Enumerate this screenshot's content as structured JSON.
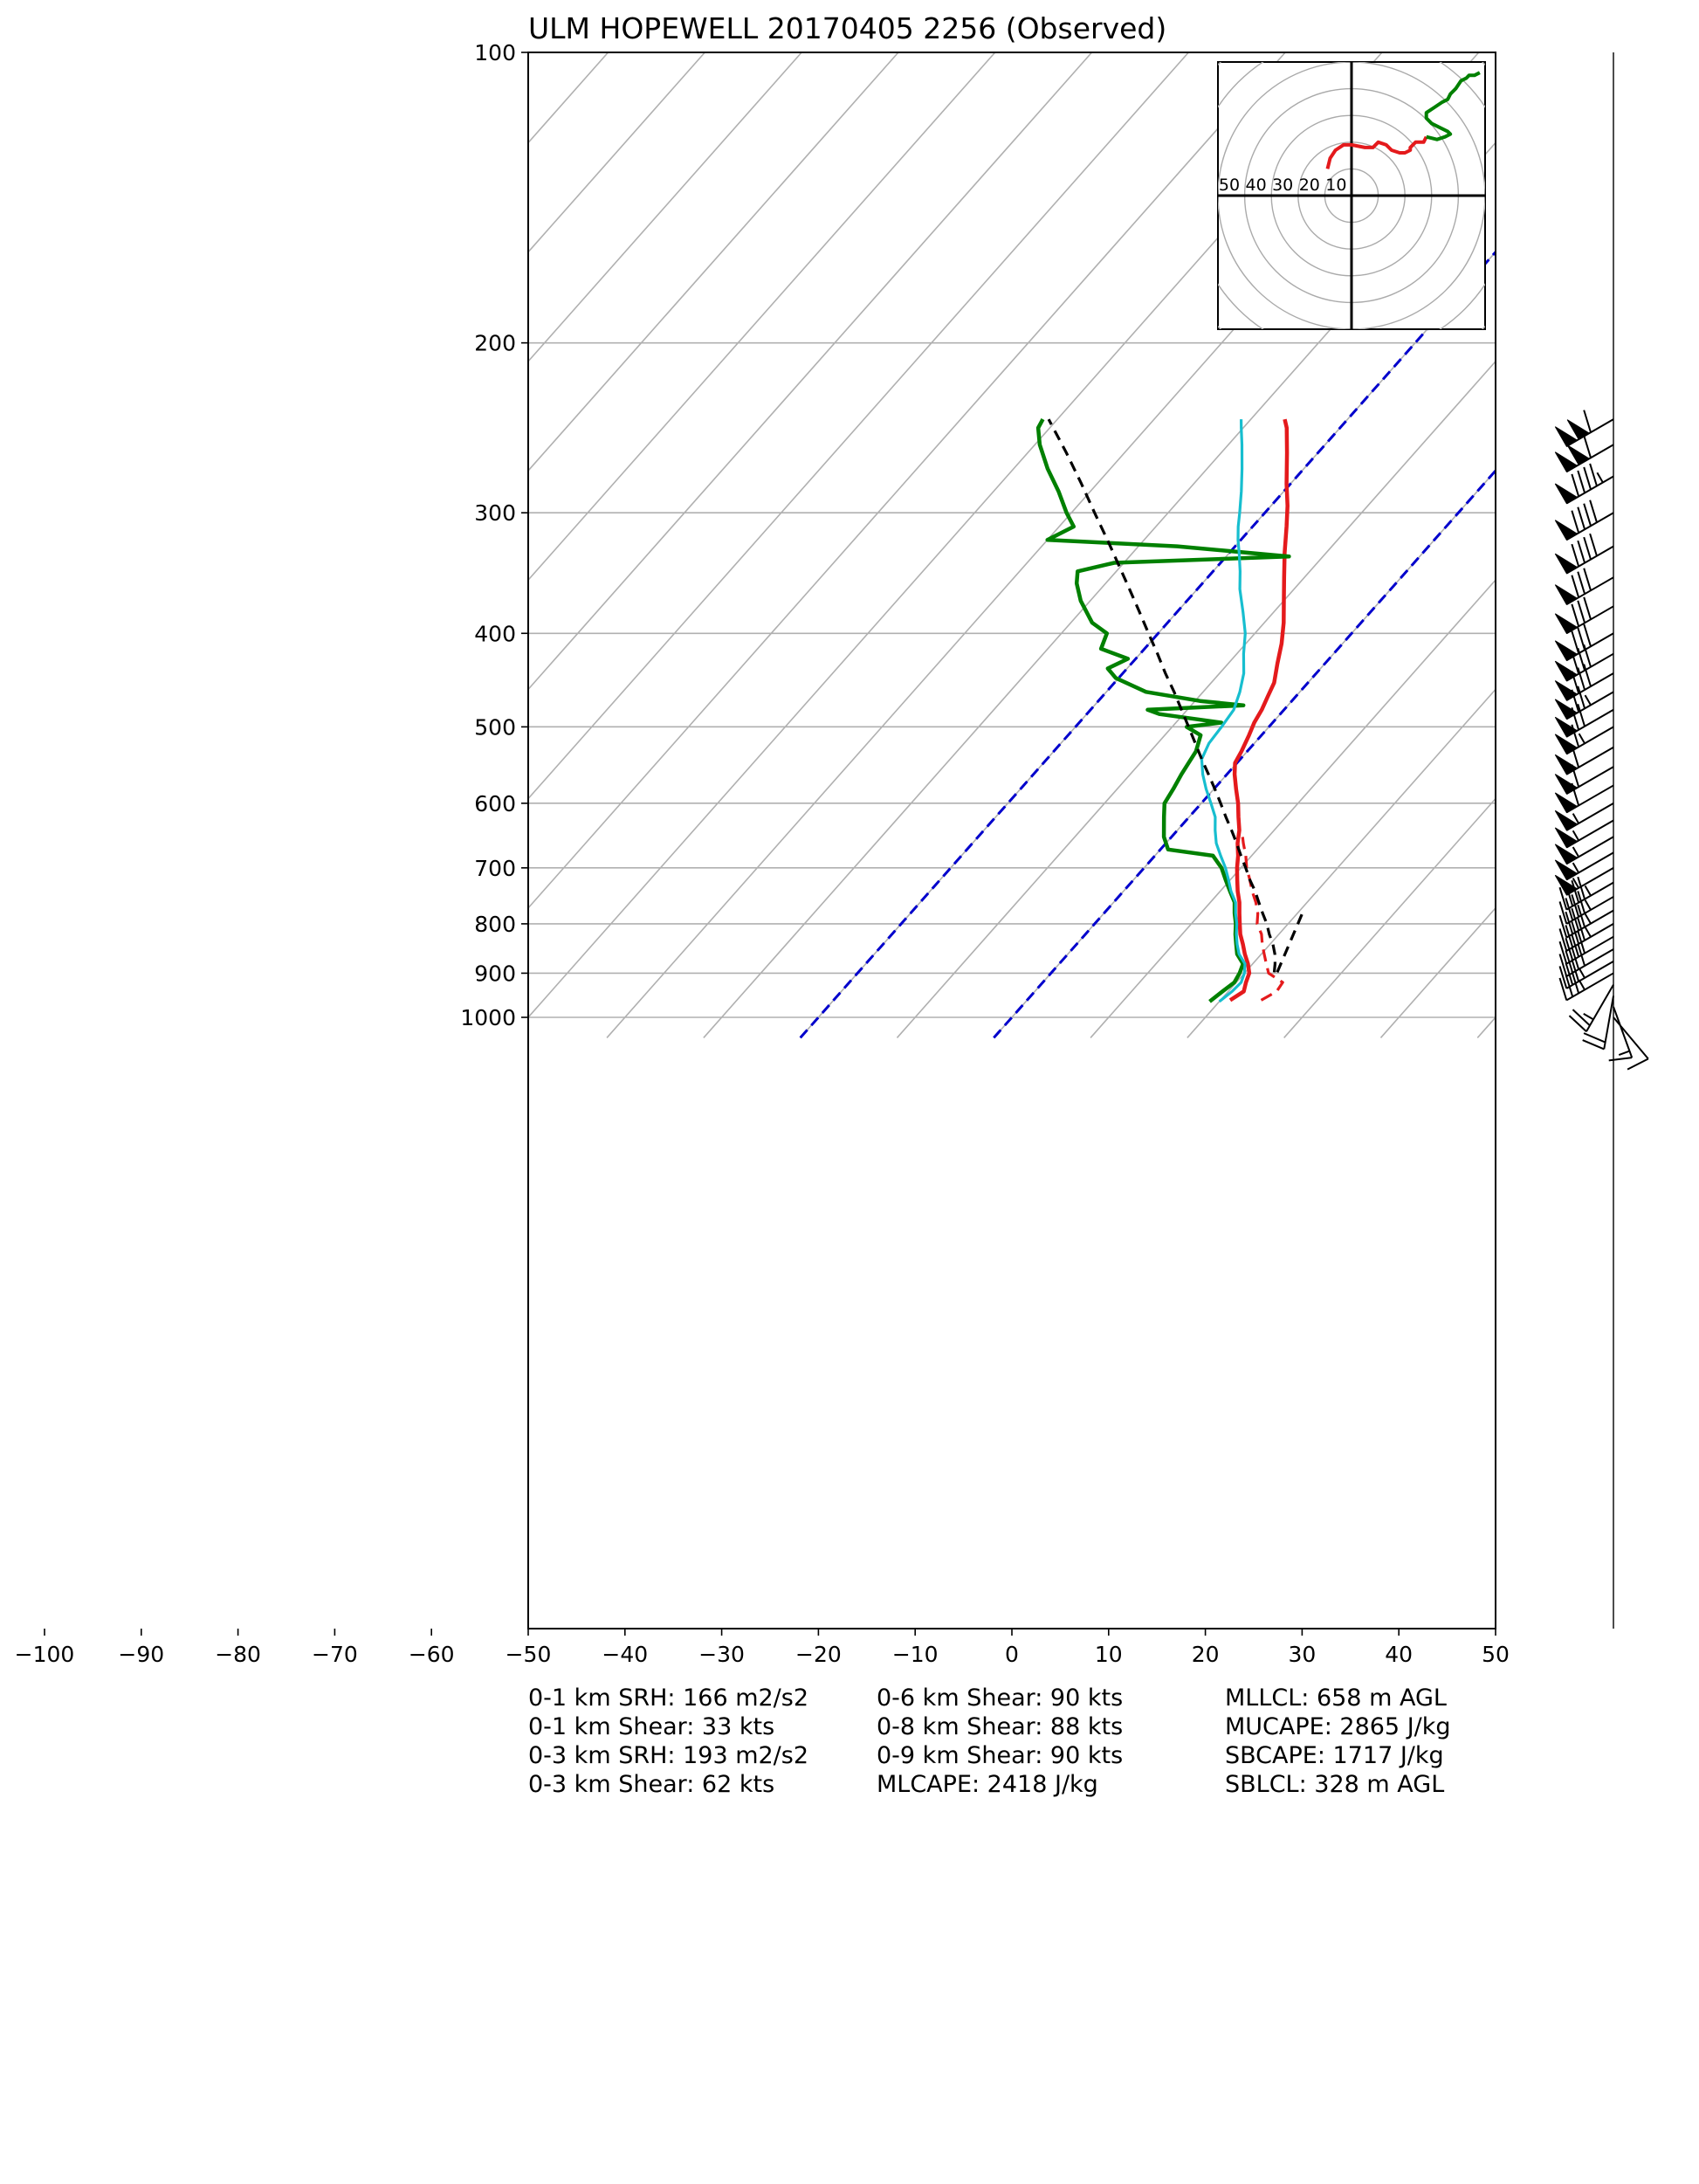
{
  "chart_data": {
    "type": "skew-t",
    "title": "ULM HOPEWELL 20170405 2256   (Observed)",
    "pressure_ticks": [
      100,
      200,
      300,
      400,
      500,
      600,
      700,
      800,
      900,
      1000
    ],
    "temperature_ticks": [
      -100,
      -90,
      -80,
      -70,
      -60,
      -50,
      -40,
      -30,
      -20,
      -10,
      0,
      10,
      20,
      30,
      40,
      50
    ],
    "xlim": [
      -50,
      50
    ],
    "ylim": [
      1050,
      100
    ],
    "series": [
      {
        "role": "temperature",
        "color": "#e41a1c",
        "points": [
          [
            960,
            21.0
          ],
          [
            940,
            21.6
          ],
          [
            920,
            21.0
          ],
          [
            900,
            20.5
          ],
          [
            880,
            19.5
          ],
          [
            860,
            18.3
          ],
          [
            840,
            17.2
          ],
          [
            820,
            16.0
          ],
          [
            800,
            15.0
          ],
          [
            780,
            14.0
          ],
          [
            760,
            13.0
          ],
          [
            740,
            11.8
          ],
          [
            720,
            10.7
          ],
          [
            700,
            9.6
          ],
          [
            680,
            8.6
          ],
          [
            660,
            7.4
          ],
          [
            640,
            6.4
          ],
          [
            620,
            5.1
          ],
          [
            600,
            3.8
          ],
          [
            580,
            2.3
          ],
          [
            560,
            0.8
          ],
          [
            545,
            -0.2
          ],
          [
            530,
            -0.6
          ],
          [
            510,
            -1.3
          ],
          [
            495,
            -1.9
          ],
          [
            480,
            -2.3
          ],
          [
            465,
            -2.9
          ],
          [
            450,
            -3.5
          ],
          [
            430,
            -4.9
          ],
          [
            410,
            -6.3
          ],
          [
            390,
            -8.0
          ],
          [
            370,
            -10.0
          ],
          [
            350,
            -12.1
          ],
          [
            330,
            -14.3
          ],
          [
            310,
            -16.5
          ],
          [
            295,
            -18.3
          ],
          [
            280,
            -20.4
          ],
          [
            260,
            -23.2
          ],
          [
            245,
            -25.5
          ],
          [
            240,
            -26.5
          ]
        ]
      },
      {
        "role": "dewpoint",
        "color": "#008000",
        "points": [
          [
            963,
            19.0
          ],
          [
            940,
            19.4
          ],
          [
            920,
            19.8
          ],
          [
            900,
            19.5
          ],
          [
            880,
            19.0
          ],
          [
            860,
            17.5
          ],
          [
            840,
            16.5
          ],
          [
            820,
            15.5
          ],
          [
            800,
            14.6
          ],
          [
            780,
            13.5
          ],
          [
            760,
            12.5
          ],
          [
            740,
            11.0
          ],
          [
            720,
            9.5
          ],
          [
            700,
            8.0
          ],
          [
            680,
            6.0
          ],
          [
            670,
            0.8
          ],
          [
            650,
            -0.8
          ],
          [
            620,
            -2.6
          ],
          [
            600,
            -3.8
          ],
          [
            580,
            -4.2
          ],
          [
            560,
            -4.7
          ],
          [
            545,
            -5.0
          ],
          [
            530,
            -5.3
          ],
          [
            510,
            -6.3
          ],
          [
            500,
            -8.5
          ],
          [
            495,
            -5.3
          ],
          [
            485,
            -12.5
          ],
          [
            480,
            -14.1
          ],
          [
            475,
            -4.6
          ],
          [
            470,
            -9.5
          ],
          [
            460,
            -15.9
          ],
          [
            445,
            -20.3
          ],
          [
            435,
            -22.0
          ],
          [
            425,
            -20.8
          ],
          [
            415,
            -24.5
          ],
          [
            400,
            -25.3
          ],
          [
            390,
            -27.8
          ],
          [
            370,
            -31.0
          ],
          [
            355,
            -33.0
          ],
          [
            345,
            -34.0
          ],
          [
            338,
            -31.0
          ],
          [
            333,
            -13.5
          ],
          [
            325,
            -26.0
          ],
          [
            320,
            -40.0
          ],
          [
            310,
            -38.5
          ],
          [
            300,
            -40.5
          ],
          [
            285,
            -43.3
          ],
          [
            270,
            -46.5
          ],
          [
            255,
            -49.5
          ],
          [
            245,
            -51.2
          ],
          [
            240,
            -51.5
          ]
        ]
      },
      {
        "role": "virtual-temperature-dashed",
        "color": "#e41a1c",
        "points": [
          [
            960,
            24.2
          ],
          [
            940,
            25.0
          ],
          [
            920,
            24.8
          ],
          [
            900,
            22.5
          ],
          [
            880,
            21.4
          ],
          [
            860,
            20.3
          ],
          [
            840,
            19.2
          ],
          [
            820,
            18.2
          ],
          [
            800,
            16.8
          ],
          [
            780,
            15.9
          ],
          [
            760,
            14.7
          ],
          [
            740,
            13.3
          ],
          [
            720,
            12.0
          ],
          [
            700,
            10.6
          ],
          [
            680,
            9.4
          ],
          [
            660,
            8.0
          ],
          [
            645,
            7.0
          ]
        ]
      },
      {
        "role": "wet-bulb",
        "color": "#17becf",
        "points": [
          [
            963,
            20.0
          ],
          [
            940,
            20.4
          ],
          [
            920,
            20.5
          ],
          [
            900,
            20.0
          ],
          [
            880,
            19.2
          ],
          [
            860,
            17.7
          ],
          [
            840,
            16.6
          ],
          [
            820,
            15.6
          ],
          [
            800,
            14.7
          ],
          [
            780,
            13.6
          ],
          [
            760,
            12.6
          ],
          [
            740,
            11.1
          ],
          [
            720,
            9.8
          ],
          [
            700,
            8.4
          ],
          [
            680,
            6.8
          ],
          [
            660,
            5.2
          ],
          [
            640,
            3.9
          ],
          [
            620,
            2.7
          ],
          [
            600,
            1.0
          ],
          [
            580,
            -0.8
          ],
          [
            560,
            -2.5
          ],
          [
            540,
            -4.0
          ],
          [
            520,
            -4.7
          ],
          [
            500,
            -4.9
          ],
          [
            480,
            -5.2
          ],
          [
            460,
            -6.2
          ],
          [
            440,
            -7.5
          ],
          [
            420,
            -9.3
          ],
          [
            400,
            -11.0
          ],
          [
            380,
            -13.2
          ],
          [
            360,
            -15.6
          ],
          [
            345,
            -17.2
          ],
          [
            330,
            -19.0
          ],
          [
            320,
            -20.3
          ],
          [
            310,
            -21.5
          ],
          [
            300,
            -22.6
          ],
          [
            285,
            -24.4
          ],
          [
            270,
            -26.4
          ],
          [
            255,
            -28.6
          ],
          [
            245,
            -30.2
          ],
          [
            240,
            -31.0
          ]
        ]
      },
      {
        "role": "parcel-dashed",
        "color": "#000000",
        "points": [
          [
            898,
            23.0
          ],
          [
            880,
            22.3
          ],
          [
            860,
            21.4
          ],
          [
            840,
            20.3
          ],
          [
            820,
            19.0
          ],
          [
            800,
            17.8
          ],
          [
            780,
            16.4
          ],
          [
            760,
            15.0
          ],
          [
            740,
            13.6
          ],
          [
            720,
            12.0
          ],
          [
            700,
            10.5
          ],
          [
            680,
            8.9
          ],
          [
            660,
            7.3
          ],
          [
            640,
            5.6
          ],
          [
            620,
            3.8
          ],
          [
            600,
            2.0
          ],
          [
            580,
            0.1
          ],
          [
            560,
            -1.9
          ],
          [
            540,
            -4.0
          ],
          [
            520,
            -6.1
          ],
          [
            500,
            -8.3
          ],
          [
            480,
            -10.6
          ],
          [
            460,
            -13.0
          ],
          [
            440,
            -15.6
          ],
          [
            420,
            -18.2
          ],
          [
            400,
            -21.0
          ],
          [
            380,
            -23.9
          ],
          [
            360,
            -27.0
          ],
          [
            340,
            -30.3
          ],
          [
            320,
            -33.8
          ],
          [
            300,
            -37.6
          ],
          [
            280,
            -41.6
          ],
          [
            260,
            -46.0
          ],
          [
            240,
            -50.9
          ]
        ]
      },
      {
        "role": "parcel-dashed-low",
        "color": "#000000",
        "points": [
          [
            898,
            23.3
          ],
          [
            820,
            21.5
          ],
          [
            780,
            20.5
          ]
        ]
      }
    ],
    "inset_hodograph": {
      "ring_labels": [
        "50",
        "40",
        "30",
        "20",
        "10"
      ],
      "ring_step_kts": 10,
      "ring_max_kts": 50,
      "lower_trace_color": "#e41a1c",
      "upper_trace_color": "#008000",
      "lower_trace_uv_kts": [
        [
          -9,
          10
        ],
        [
          -8,
          14
        ],
        [
          -6,
          17
        ],
        [
          -3,
          19
        ],
        [
          0,
          19
        ],
        [
          5,
          18
        ],
        [
          8,
          18
        ],
        [
          10,
          20
        ],
        [
          13,
          19
        ],
        [
          15,
          17
        ],
        [
          18,
          16
        ],
        [
          20,
          16
        ],
        [
          22,
          17
        ],
        [
          22,
          18
        ],
        [
          24,
          20
        ],
        [
          27,
          20
        ],
        [
          28,
          22
        ]
      ],
      "upper_trace_uv_kts": [
        [
          28,
          22
        ],
        [
          32,
          21
        ],
        [
          35,
          22
        ],
        [
          37,
          23
        ],
        [
          36,
          24
        ],
        [
          30,
          27
        ],
        [
          28,
          29
        ],
        [
          28,
          31
        ],
        [
          31,
          33
        ],
        [
          34,
          35
        ],
        [
          36,
          36
        ],
        [
          37,
          38
        ],
        [
          39,
          40
        ],
        [
          41,
          43
        ],
        [
          43,
          44
        ],
        [
          44,
          45
        ],
        [
          46,
          45
        ],
        [
          48,
          46
        ]
      ]
    },
    "wind_barbs": [
      {
        "p": 240,
        "ws": 110,
        "wd": 240
      },
      {
        "p": 255,
        "ws": 110,
        "wd": 240
      },
      {
        "p": 275,
        "ws": 95,
        "wd": 240
      },
      {
        "p": 300,
        "ws": 90,
        "wd": 240
      },
      {
        "p": 325,
        "ws": 90,
        "wd": 240
      },
      {
        "p": 350,
        "ws": 80,
        "wd": 240
      },
      {
        "p": 375,
        "ws": 80,
        "wd": 240
      },
      {
        "p": 400,
        "ws": 80,
        "wd": 240
      },
      {
        "p": 420,
        "ws": 80,
        "wd": 240
      },
      {
        "p": 440,
        "ws": 80,
        "wd": 240
      },
      {
        "p": 460,
        "ws": 75,
        "wd": 240
      },
      {
        "p": 480,
        "ws": 70,
        "wd": 240
      },
      {
        "p": 500,
        "ws": 65,
        "wd": 240
      },
      {
        "p": 525,
        "ws": 60,
        "wd": 240
      },
      {
        "p": 550,
        "ws": 60,
        "wd": 240
      },
      {
        "p": 575,
        "ws": 60,
        "wd": 240
      },
      {
        "p": 600,
        "ws": 55,
        "wd": 240
      },
      {
        "p": 625,
        "ws": 55,
        "wd": 240
      },
      {
        "p": 650,
        "ws": 55,
        "wd": 240
      },
      {
        "p": 675,
        "ws": 55,
        "wd": 240
      },
      {
        "p": 700,
        "ws": 55,
        "wd": 240
      },
      {
        "p": 725,
        "ws": 45,
        "wd": 240
      },
      {
        "p": 750,
        "ws": 45,
        "wd": 240
      },
      {
        "p": 775,
        "ws": 45,
        "wd": 240
      },
      {
        "p": 800,
        "ws": 45,
        "wd": 240
      },
      {
        "p": 825,
        "ws": 40,
        "wd": 240
      },
      {
        "p": 850,
        "ws": 40,
        "wd": 240
      },
      {
        "p": 875,
        "ws": 35,
        "wd": 240
      },
      {
        "p": 900,
        "ws": 35,
        "wd": 240
      },
      {
        "p": 925,
        "ws": 25,
        "wd": 210
      },
      {
        "p": 950,
        "ws": 20,
        "wd": 190
      },
      {
        "p": 975,
        "ws": 15,
        "wd": 160
      },
      {
        "p": 1000,
        "ws": 10,
        "wd": 140
      }
    ]
  },
  "stats": {
    "col1": [
      "0-1 km SRH: 166 m2/s2",
      "0-1 km Shear: 33 kts",
      "0-3 km SRH: 193 m2/s2",
      "0-3 km Shear: 62 kts"
    ],
    "col2": [
      "0-6 km Shear: 90 kts",
      "0-8 km Shear: 88 kts",
      "0-9 km Shear: 90 kts",
      "MLCAPE: 2418 J/kg"
    ],
    "col3": [
      "MLLCL: 658 m AGL",
      "MUCAPE: 2865 J/kg",
      "SBCAPE: 1717 J/kg",
      "SBLCL: 328 m AGL"
    ]
  }
}
